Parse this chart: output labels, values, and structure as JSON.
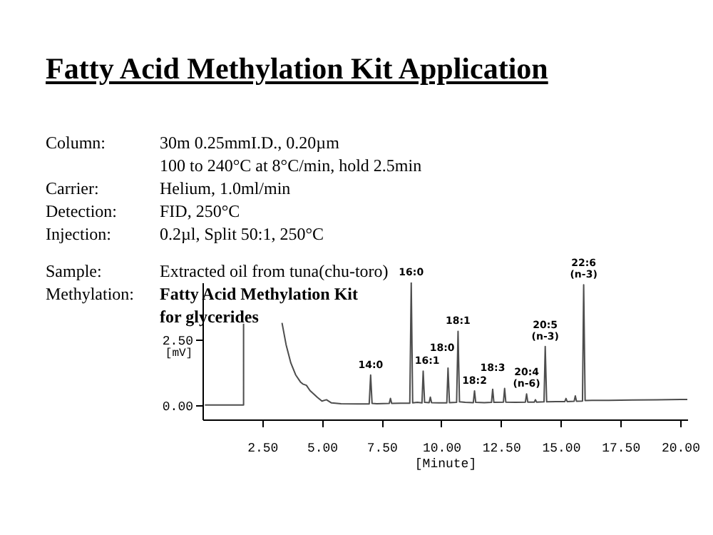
{
  "chart_data": {
    "type": "line",
    "title": "Fatty Acid Methylation Kit Application",
    "xlabel": "[Minute]",
    "ylabel": "[mV]",
    "xlim": [
      0,
      20.3
    ],
    "ylim": [
      -0.55,
      4.67
    ],
    "xticks": [
      {
        "value": 2.5,
        "label": "2.50"
      },
      {
        "value": 5,
        "label": "5.00"
      },
      {
        "value": 7.5,
        "label": "7.50"
      },
      {
        "value": 10,
        "label": "10.00"
      },
      {
        "value": 12.5,
        "label": "12.50"
      },
      {
        "value": 15,
        "label": "15.00"
      },
      {
        "value": 17.5,
        "label": "17.50"
      },
      {
        "value": 20,
        "label": "20.00"
      }
    ],
    "yticks": [
      {
        "value": 0,
        "label": "0.00"
      },
      {
        "value": 2.5,
        "label": "2.50"
      }
    ],
    "series": [
      {
        "color": "#4d4d4d",
        "x": [
          0.1,
          1.72,
          1.72,
          2.5,
          3.33,
          3.5,
          3.7,
          3.9,
          4.1,
          4.2,
          4.35,
          4.5,
          4.8,
          5.0,
          5.19,
          5.4,
          5.8,
          6.5,
          6.98,
          7.04,
          7.1,
          7.3,
          7.82,
          7.87,
          7.92,
          8.3,
          8.68,
          8.74,
          8.8,
          9.0,
          9.19,
          9.24,
          9.3,
          9.49,
          9.54,
          9.59,
          9.9,
          10.23,
          10.28,
          10.34,
          10.64,
          10.7,
          10.76,
          11.0,
          11.34,
          11.39,
          11.44,
          11.8,
          12.1,
          12.15,
          12.2,
          12.6,
          12.65,
          12.7,
          13.1,
          13.52,
          13.57,
          13.62,
          13.89,
          13.94,
          13.99,
          14.3,
          14.35,
          14.41,
          14.8,
          15.17,
          15.22,
          15.27,
          15.56,
          15.61,
          15.66,
          15.91,
          15.96,
          16.02,
          16.3,
          17.0,
          18.0,
          19.0,
          20.0,
          20.3
        ],
        "values": [
          0,
          0,
          3.1,
          null,
          3.13,
          2.3,
          1.6,
          1.15,
          0.88,
          0.8,
          0.75,
          0.55,
          0.3,
          0.15,
          0.2,
          0.08,
          0.05,
          0.04,
          0.04,
          1.14,
          0.06,
          0.05,
          0.06,
          0.25,
          0.06,
          0.07,
          0.07,
          4.67,
          0.08,
          0.1,
          0.08,
          1.29,
          0.1,
          0.09,
          0.3,
          0.09,
          0.08,
          0.08,
          1.41,
          0.09,
          0.1,
          2.81,
          0.12,
          0.1,
          0.09,
          0.54,
          0.1,
          0.09,
          0.1,
          0.6,
          0.1,
          0.11,
          0.63,
          0.11,
          0.1,
          0.11,
          0.42,
          0.11,
          0.11,
          0.2,
          0.11,
          0.12,
          2.23,
          0.12,
          0.13,
          0.13,
          0.25,
          0.13,
          0.14,
          0.35,
          0.14,
          0.15,
          4.58,
          0.17,
          0.18,
          0.18,
          0.19,
          0.2,
          0.21,
          0.21
        ]
      }
    ],
    "annotations": [
      "Column:",
      "30m 0.25mmI.D., 0.20µm\n100 to 240°C at 8°C/min, hold 2.5min",
      "Carrier:",
      "Helium, 1.0ml/min",
      "Detection:",
      "FID, 250°C",
      "Injection:",
      "0.2µl, Split 50:1, 250°C",
      "Sample:",
      "Extracted oil from tuna(chu-toro)",
      "Methylation:",
      "Fatty Acid Methylation Kit\nfor glycerides",
      {
        "text": "14:0",
        "x": 7.04,
        "y": 1.14
      },
      {
        "text": "16:0",
        "x": 8.74,
        "y": 4.67
      },
      {
        "text": "16:1",
        "x": 9.24,
        "y": 1.29
      },
      {
        "text": "18:0",
        "x": 10.28,
        "y": 1.41
      },
      {
        "text": "18:1",
        "x": 10.7,
        "y": 2.81
      },
      {
        "text": "18:2",
        "x": 11.39,
        "y": 0.54
      },
      {
        "text": "18:3",
        "x": 12.15,
        "y": 0.6
      },
      {
        "text": "20:4\n(n-6)",
        "x": 13.57,
        "y": 0.42
      },
      {
        "text": "20:5\n(n-3)",
        "x": 14.35,
        "y": 2.23
      },
      {
        "text": "22:6\n(n-3)",
        "x": 15.96,
        "y": 4.58
      }
    ]
  }
}
